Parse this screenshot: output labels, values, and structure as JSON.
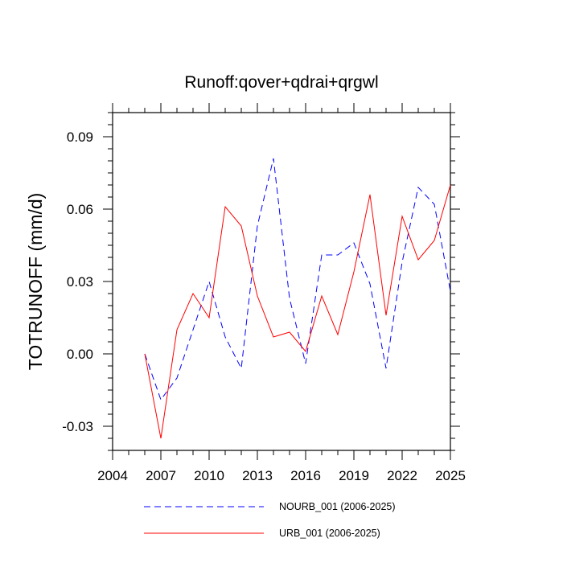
{
  "chart_data": {
    "type": "line",
    "title": "Runoff:qover+qdrai+qrgwl",
    "xlabel": "",
    "ylabel": "TOTRUNOFF  (mm/d)",
    "xlim": [
      2004,
      2025
    ],
    "ylim": [
      -0.04,
      0.1
    ],
    "xticks": [
      2004,
      2007,
      2010,
      2013,
      2016,
      2019,
      2022,
      2025
    ],
    "xtick_labels": [
      "2004",
      "2007",
      "2010",
      "2013",
      "2016",
      "2019",
      "2022",
      "2025"
    ],
    "yticks": [
      -0.03,
      0.0,
      0.03,
      0.06,
      0.09
    ],
    "ytick_labels": [
      "-0.03",
      "0.00",
      "0.03",
      "0.06",
      "0.09"
    ],
    "x": [
      2006,
      2007,
      2008,
      2009,
      2010,
      2011,
      2012,
      2013,
      2014,
      2015,
      2016,
      2017,
      2018,
      2019,
      2020,
      2021,
      2022,
      2023,
      2024,
      2025
    ],
    "series": [
      {
        "name": "NOURB_001 (2006-2025)",
        "color": "#0000ff",
        "dash": "dashed",
        "values": [
          0.0,
          -0.019,
          -0.01,
          0.01,
          0.03,
          0.007,
          -0.006,
          0.053,
          0.081,
          0.023,
          -0.004,
          0.041,
          0.041,
          0.046,
          0.029,
          -0.006,
          0.038,
          0.069,
          0.062,
          0.026
        ]
      },
      {
        "name": "URB_001 (2006-2025)",
        "color": "#ff0000",
        "dash": "solid",
        "values": [
          0.0,
          -0.035,
          0.01,
          0.025,
          0.015,
          0.061,
          0.053,
          0.024,
          0.007,
          0.009,
          0.001,
          0.024,
          0.008,
          0.034,
          0.066,
          0.016,
          0.057,
          0.039,
          0.047,
          0.07
        ]
      }
    ],
    "grid": false,
    "legend_position": "bottom"
  }
}
